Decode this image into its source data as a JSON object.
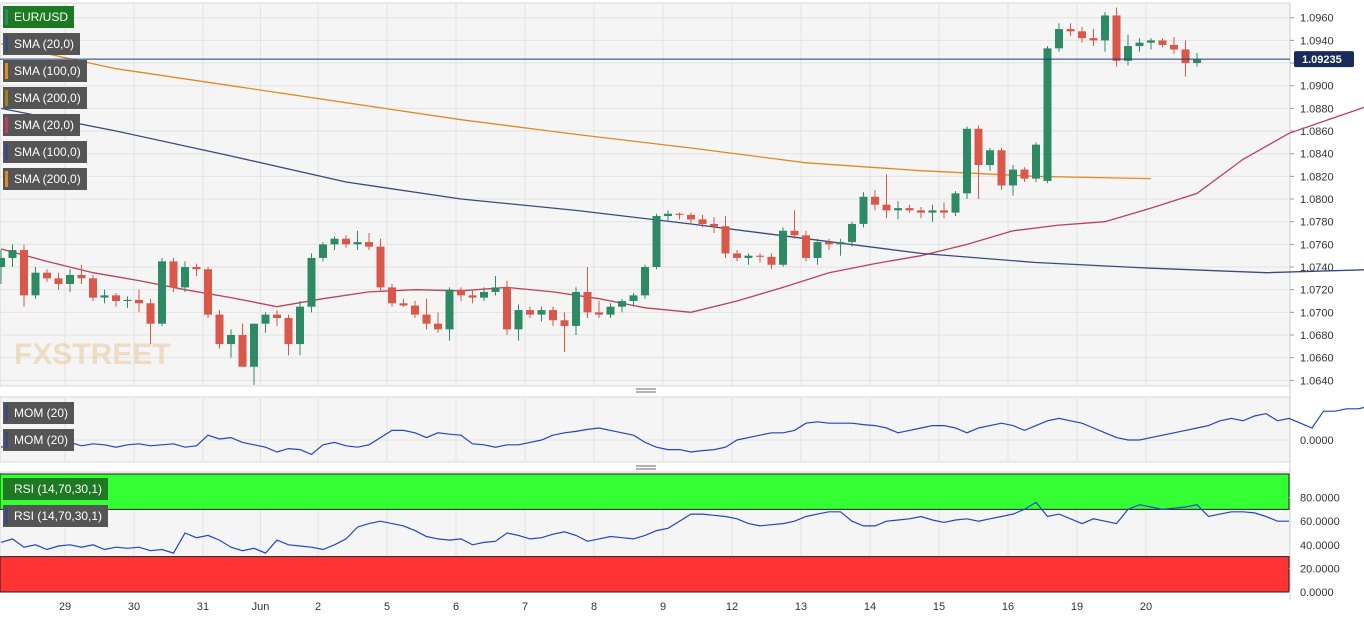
{
  "chart_data": {
    "type": "candlestick",
    "symbol": "EUR/USD",
    "last_price": "1.09235",
    "x_labels": [
      "29",
      "30",
      "31",
      "Jun",
      "2",
      "5",
      "6",
      "7",
      "8",
      "9",
      "12",
      "13",
      "14",
      "15",
      "16",
      "19",
      "20"
    ],
    "price_axis": {
      "ticks": [
        "1.0960",
        "1.0940",
        "1.0920",
        "1.0900",
        "1.0880",
        "1.0860",
        "1.0840",
        "1.0820",
        "1.0800",
        "1.0780",
        "1.0760",
        "1.0740",
        "1.0720",
        "1.0700",
        "1.0680",
        "1.0660",
        "1.0640"
      ],
      "range": [
        1.0635,
        1.0973
      ]
    },
    "candles": [
      [
        1.074,
        1.0755,
        1.0725,
        1.0748
      ],
      [
        1.0748,
        1.076,
        1.074,
        1.0755
      ],
      [
        1.0755,
        1.076,
        1.0705,
        1.0715
      ],
      [
        1.0715,
        1.074,
        1.0712,
        1.0735
      ],
      [
        1.0735,
        1.0738,
        1.0727,
        1.073
      ],
      [
        1.073,
        1.0735,
        1.072,
        1.0725
      ],
      [
        1.0725,
        1.0738,
        1.0718,
        1.0733
      ],
      [
        1.0733,
        1.0742,
        1.0725,
        1.073
      ],
      [
        1.073,
        1.0733,
        1.071,
        1.0713
      ],
      [
        1.0713,
        1.072,
        1.0708,
        1.0715
      ],
      [
        1.0715,
        1.0717,
        1.0705,
        1.071
      ],
      [
        1.071,
        1.0714,
        1.0704,
        1.0711
      ],
      [
        1.0711,
        1.072,
        1.07,
        1.0708
      ],
      [
        1.0708,
        1.0712,
        1.0672,
        1.069
      ],
      [
        1.069,
        1.0748,
        1.0688,
        1.0745
      ],
      [
        1.0745,
        1.0748,
        1.0718,
        1.0722
      ],
      [
        1.0722,
        1.0745,
        1.0718,
        1.074
      ],
      [
        1.074,
        1.0743,
        1.0732,
        1.0738
      ],
      [
        1.0738,
        1.074,
        1.0695,
        1.0698
      ],
      [
        1.0698,
        1.0702,
        1.0668,
        1.0672
      ],
      [
        1.0672,
        1.0685,
        1.066,
        1.068
      ],
      [
        1.068,
        1.069,
        1.0655,
        1.0652
      ],
      [
        1.0652,
        1.069,
        1.0636,
        1.069
      ],
      [
        1.069,
        1.07,
        1.0682,
        1.0698
      ],
      [
        1.0698,
        1.0702,
        1.0688,
        1.0695
      ],
      [
        1.0695,
        1.0698,
        1.0662,
        1.0672
      ],
      [
        1.0672,
        1.071,
        1.0662,
        1.0705
      ],
      [
        1.0705,
        1.0752,
        1.07,
        1.0748
      ],
      [
        1.0748,
        1.0762,
        1.0745,
        1.076
      ],
      [
        1.076,
        1.0767,
        1.0755,
        1.0765
      ],
      [
        1.0765,
        1.0768,
        1.0757,
        1.076
      ],
      [
        1.076,
        1.0772,
        1.0755,
        1.0762
      ],
      [
        1.0762,
        1.077,
        1.0755,
        1.0758
      ],
      [
        1.0758,
        1.0765,
        1.0718,
        1.0722
      ],
      [
        1.0722,
        1.0725,
        1.0705,
        1.0708
      ],
      [
        1.0708,
        1.0712,
        1.0705,
        1.0706
      ],
      [
        1.0706,
        1.071,
        1.0695,
        1.0698
      ],
      [
        1.0698,
        1.0712,
        1.0685,
        1.069
      ],
      [
        1.069,
        1.07,
        1.0682,
        1.0685
      ],
      [
        1.0685,
        1.0722,
        1.0675,
        1.072
      ],
      [
        1.072,
        1.0722,
        1.071,
        1.0715
      ],
      [
        1.0715,
        1.072,
        1.0708,
        1.0713
      ],
      [
        1.0713,
        1.0722,
        1.071,
        1.0718
      ],
      [
        1.0718,
        1.0732,
        1.0715,
        1.0722
      ],
      [
        1.0722,
        1.0728,
        1.068,
        1.0685
      ],
      [
        1.0685,
        1.0707,
        1.0675,
        1.0702
      ],
      [
        1.0702,
        1.0705,
        1.0695,
        1.0698
      ],
      [
        1.0698,
        1.0705,
        1.0692,
        1.0702
      ],
      [
        1.0702,
        1.0705,
        1.0688,
        1.0693
      ],
      [
        1.0693,
        1.07,
        1.0665,
        1.0688
      ],
      [
        1.0688,
        1.0722,
        1.068,
        1.0718
      ],
      [
        1.0718,
        1.074,
        1.0695,
        1.07
      ],
      [
        1.07,
        1.071,
        1.0695,
        1.0698
      ],
      [
        1.0698,
        1.0708,
        1.0695,
        1.0705
      ],
      [
        1.0705,
        1.0712,
        1.07,
        1.071
      ],
      [
        1.071,
        1.0717,
        1.0705,
        1.0715
      ],
      [
        1.0715,
        1.0742,
        1.0712,
        1.074
      ],
      [
        1.074,
        1.0787,
        1.0738,
        1.0785
      ],
      [
        1.0785,
        1.079,
        1.078,
        1.0787
      ],
      [
        1.0787,
        1.0788,
        1.0782,
        1.0786
      ],
      [
        1.0786,
        1.0788,
        1.0778,
        1.0782
      ],
      [
        1.0782,
        1.0786,
        1.0775,
        1.0778
      ],
      [
        1.0778,
        1.0784,
        1.077,
        1.0776
      ],
      [
        1.0776,
        1.0785,
        1.0748,
        1.0752
      ],
      [
        1.0752,
        1.0755,
        1.0745,
        1.0748
      ],
      [
        1.0748,
        1.0752,
        1.0742,
        1.075
      ],
      [
        1.075,
        1.0752,
        1.0744,
        1.0749
      ],
      [
        1.0749,
        1.0752,
        1.0738,
        1.0742
      ],
      [
        1.0742,
        1.0775,
        1.074,
        1.0772
      ],
      [
        1.0772,
        1.079,
        1.0765,
        1.0768
      ],
      [
        1.0768,
        1.0772,
        1.0745,
        1.0748
      ],
      [
        1.0748,
        1.0765,
        1.0742,
        1.0762
      ],
      [
        1.0762,
        1.0765,
        1.0755,
        1.076
      ],
      [
        1.076,
        1.0765,
        1.075,
        1.0762
      ],
      [
        1.0762,
        1.078,
        1.0758,
        1.0778
      ],
      [
        1.0778,
        1.0806,
        1.0775,
        1.0802
      ],
      [
        1.0802,
        1.0808,
        1.079,
        1.0795
      ],
      [
        1.0795,
        1.0822,
        1.0783,
        1.079
      ],
      [
        1.079,
        1.0798,
        1.0782,
        1.0792
      ],
      [
        1.0792,
        1.0795,
        1.0788,
        1.079
      ],
      [
        1.079,
        1.0793,
        1.0783,
        1.0788
      ],
      [
        1.0788,
        1.0795,
        1.078,
        1.079
      ],
      [
        1.079,
        1.0797,
        1.0783,
        1.0788
      ],
      [
        1.0788,
        1.0807,
        1.0785,
        1.0805
      ],
      [
        1.0805,
        1.0864,
        1.08,
        1.0862
      ],
      [
        1.0862,
        1.0865,
        1.08,
        1.083
      ],
      [
        1.083,
        1.0845,
        1.0825,
        1.0843
      ],
      [
        1.0843,
        1.0845,
        1.0808,
        1.0812
      ],
      [
        1.0812,
        1.083,
        1.0803,
        1.0826
      ],
      [
        1.0826,
        1.0828,
        1.0815,
        1.0818
      ],
      [
        1.0818,
        1.085,
        1.0815,
        1.0848
      ],
      [
        1.0816,
        1.0935,
        1.0814,
        1.0933
      ],
      [
        1.0933,
        1.0955,
        1.093,
        1.095
      ],
      [
        1.095,
        1.0955,
        1.0944,
        1.0948
      ],
      [
        1.0948,
        1.0952,
        1.0938,
        1.0942
      ],
      [
        1.0942,
        1.095,
        1.0935,
        1.094
      ],
      [
        1.094,
        1.0965,
        1.093,
        1.0962
      ],
      [
        1.0962,
        1.0969,
        1.0917,
        1.0922
      ],
      [
        1.0922,
        1.0945,
        1.0918,
        1.0935
      ],
      [
        1.0935,
        1.0942,
        1.093,
        1.0938
      ],
      [
        1.0938,
        1.0942,
        1.0932,
        1.094
      ],
      [
        1.094,
        1.0942,
        1.0934,
        1.0936
      ],
      [
        1.0936,
        1.0943,
        1.0928,
        1.0932
      ],
      [
        1.0932,
        1.094,
        1.0908,
        1.092
      ],
      [
        1.092,
        1.0929,
        1.0917,
        1.0923
      ]
    ],
    "day_starts": [
      6,
      12,
      18,
      23,
      28,
      34,
      40,
      46,
      52,
      58,
      64,
      70,
      76,
      82,
      88,
      94,
      100
    ],
    "sma": [
      {
        "name": "SMA (20,0)",
        "color": "#c0405a",
        "points": [
          [
            0,
            1.0756
          ],
          [
            4,
            1.0745
          ],
          [
            8,
            1.0735
          ],
          [
            12,
            1.0728
          ],
          [
            16,
            1.072
          ],
          [
            20,
            1.0713
          ],
          [
            24,
            1.0705
          ],
          [
            28,
            1.0712
          ],
          [
            32,
            1.0718
          ],
          [
            36,
            1.072
          ],
          [
            40,
            1.0719
          ],
          [
            44,
            1.0722
          ],
          [
            48,
            1.0718
          ],
          [
            52,
            1.0712
          ],
          [
            56,
            1.0704
          ],
          [
            60,
            1.07
          ],
          [
            64,
            1.071
          ],
          [
            68,
            1.0722
          ],
          [
            72,
            1.0735
          ],
          [
            76,
            1.0743
          ],
          [
            80,
            1.075
          ],
          [
            84,
            1.076
          ],
          [
            88,
            1.0772
          ],
          [
            92,
            1.0777
          ],
          [
            96,
            1.078
          ],
          [
            100,
            1.0792
          ],
          [
            104,
            1.0805
          ],
          [
            108,
            1.0835
          ],
          [
            112,
            1.0858
          ],
          [
            116,
            1.0872
          ],
          [
            120,
            1.0886
          ],
          [
            124,
            1.0902
          ]
        ]
      },
      {
        "name": "SMA (100,0)",
        "color": "#3a4a80",
        "points": [
          [
            0,
            1.088
          ],
          [
            10,
            1.086
          ],
          [
            20,
            1.0838
          ],
          [
            30,
            1.0815
          ],
          [
            40,
            1.08
          ],
          [
            50,
            1.079
          ],
          [
            60,
            1.0778
          ],
          [
            70,
            1.0765
          ],
          [
            80,
            1.0752
          ],
          [
            90,
            1.0744
          ],
          [
            100,
            1.0739
          ],
          [
            110,
            1.0735
          ],
          [
            120,
            1.0738
          ],
          [
            124,
            1.0749
          ],
          [
            130,
            1.0765
          ]
        ]
      },
      {
        "name": "SMA (200,0)",
        "color": "#e08a20",
        "points": [
          [
            0,
            1.0937
          ],
          [
            10,
            1.0915
          ],
          [
            20,
            1.09
          ],
          [
            30,
            1.0885
          ],
          [
            40,
            1.087
          ],
          [
            50,
            1.0857
          ],
          [
            60,
            1.0845
          ],
          [
            70,
            1.0832
          ],
          [
            80,
            1.0825
          ],
          [
            90,
            1.082
          ],
          [
            100,
            1.0818
          ]
        ]
      }
    ],
    "momentum": {
      "label": "MOM (20)",
      "tick": "0.0000",
      "values": [
        -0.15,
        -0.1,
        -0.05,
        -0.08,
        -0.12,
        -0.1,
        -0.05,
        -0.12,
        -0.08,
        -0.1,
        -0.15,
        -0.1,
        -0.08,
        -0.12,
        -0.1,
        -0.08,
        -0.15,
        -0.12,
        0.1,
        0.02,
        0.05,
        -0.05,
        -0.1,
        -0.15,
        -0.25,
        -0.18,
        -0.2,
        -0.3,
        -0.1,
        -0.05,
        -0.12,
        -0.15,
        -0.1,
        0.05,
        0.2,
        0.2,
        0.15,
        0.05,
        0.15,
        0.12,
        0.1,
        -0.08,
        -0.1,
        -0.15,
        -0.1,
        -0.1,
        -0.05,
        0.0,
        0.1,
        0.15,
        0.18,
        0.22,
        0.25,
        0.2,
        0.15,
        0.1,
        -0.05,
        -0.15,
        -0.2,
        -0.2,
        -0.25,
        -0.22,
        -0.2,
        -0.15,
        0.0,
        0.05,
        0.1,
        0.15,
        0.15,
        0.2,
        0.35,
        0.38,
        0.35,
        0.35,
        0.35,
        0.32,
        0.3,
        0.25,
        0.15,
        0.2,
        0.25,
        0.3,
        0.3,
        0.25,
        0.15,
        0.25,
        0.3,
        0.35,
        0.3,
        0.2,
        0.3,
        0.4,
        0.45,
        0.4,
        0.35,
        0.25,
        0.15,
        0.05,
        0.0,
        0.0,
        0.05,
        0.1,
        0.15,
        0.2,
        0.25,
        0.3,
        0.4,
        0.45,
        0.4,
        0.5,
        0.55,
        0.4,
        0.45,
        0.35,
        0.25,
        0.6,
        0.6,
        0.65,
        0.65,
        0.7,
        0.68,
        0.65,
        0.6,
        0.6
      ]
    },
    "rsi": {
      "label": "RSI (14,70,30,1)",
      "ticks": [
        "80.0000",
        "60.0000",
        "40.0000",
        "20.0000",
        "0.0000"
      ],
      "overbought": 70,
      "oversold": 30,
      "values": [
        42,
        45,
        38,
        40,
        36,
        39,
        40,
        38,
        40,
        36,
        38,
        37,
        38,
        35,
        36,
        33,
        50,
        46,
        48,
        44,
        38,
        35,
        37,
        33,
        44,
        40,
        39,
        38,
        36,
        40,
        45,
        55,
        58,
        60,
        58,
        56,
        52,
        47,
        45,
        44,
        45,
        40,
        42,
        43,
        50,
        48,
        45,
        46,
        49,
        51,
        48,
        43,
        45,
        47,
        46,
        45,
        48,
        52,
        54,
        60,
        66,
        66,
        65,
        64,
        62,
        58,
        56,
        57,
        58,
        60,
        64,
        66,
        68,
        68,
        60,
        56,
        56,
        60,
        61,
        62,
        64,
        61,
        59,
        61,
        62,
        60,
        62,
        64,
        66,
        70,
        76,
        64,
        66,
        62,
        58,
        62,
        60,
        58,
        70,
        74,
        72,
        70,
        71,
        72,
        74,
        64,
        66,
        68,
        68,
        67,
        64,
        60,
        60
      ]
    }
  },
  "legends": {
    "symbol": "EUR/USD",
    "main": [
      {
        "label": "SMA (20,0)",
        "color": "#3a4a80"
      },
      {
        "label": "SMA (100,0)",
        "color": "#e08a20"
      },
      {
        "label": "SMA (200,0)",
        "color": "#a08020"
      },
      {
        "label": "SMA (20,0)",
        "color": "#c0405a"
      },
      {
        "label": "SMA (100,0)",
        "color": "#3a4a80"
      },
      {
        "label": "SMA (200,0)",
        "color": "#e08a20"
      }
    ],
    "mom": [
      {
        "label": "MOM (20)",
        "color": "#3a4a80"
      },
      {
        "label": "MOM (20)",
        "color": "#3a4a80"
      }
    ],
    "rsi": [
      {
        "label": "RSI (14,70,30,1)",
        "color": "#1d7a22"
      },
      {
        "label": "RSI (14,70,30,1)",
        "color": "#3a4a80"
      }
    ]
  },
  "watermark": "FXSTREET",
  "colors": {
    "up": "#2e8a64",
    "down": "#d9584a",
    "rsi_line": "#2244cc",
    "mom_line": "#2244cc",
    "overbought_zone": "#33ff33",
    "oversold_zone": "#ff3333",
    "price_line": "#1f3a7a"
  }
}
